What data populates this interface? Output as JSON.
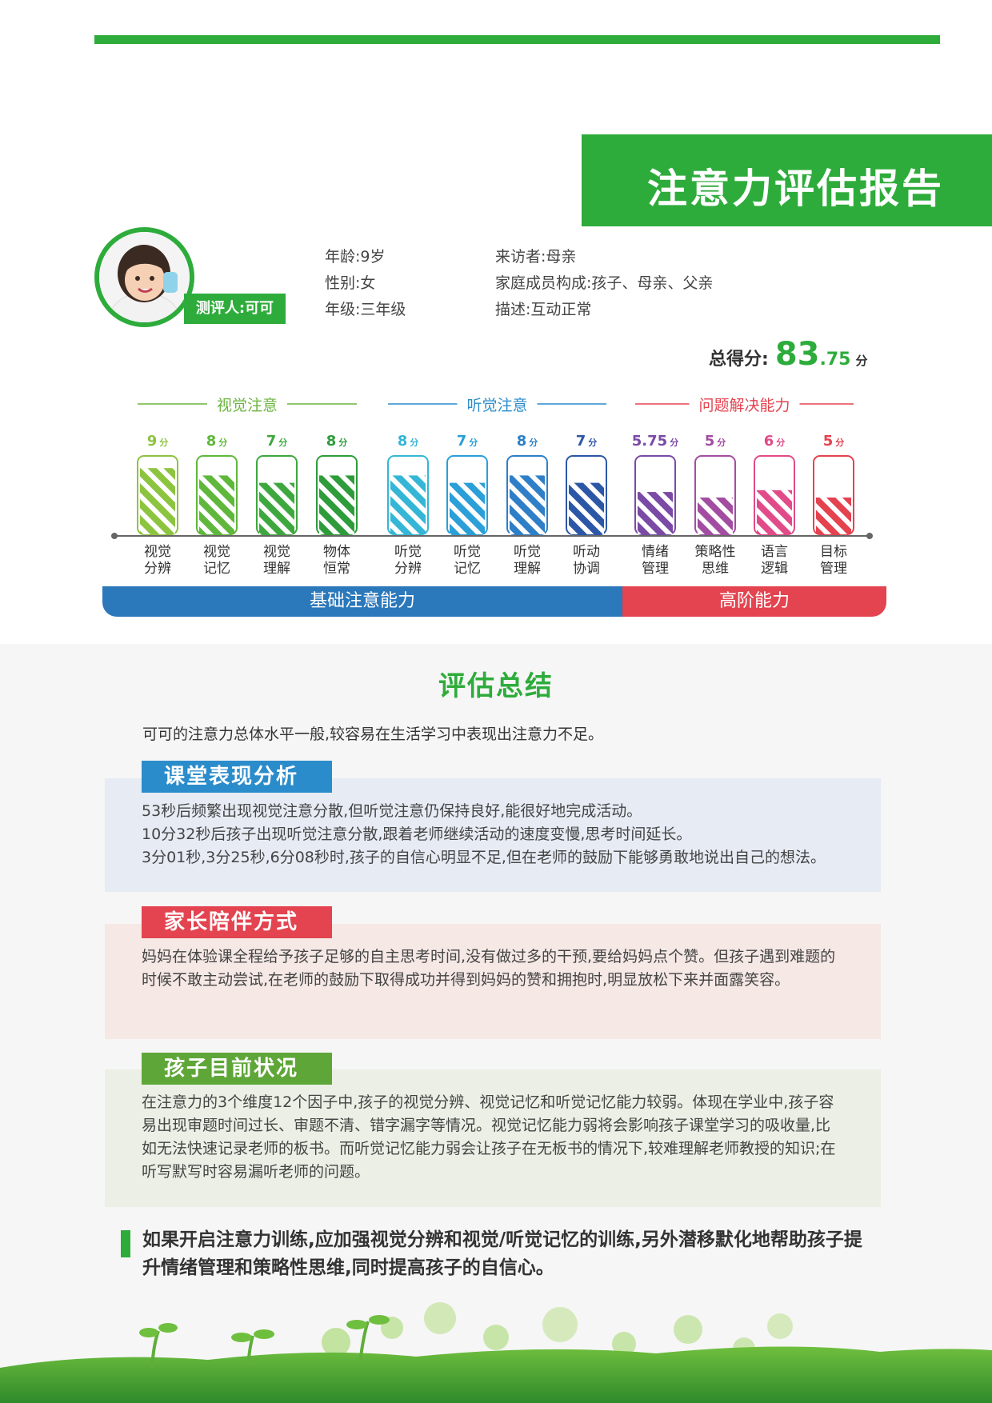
{
  "header": {
    "title": "注意力评估报告"
  },
  "profile": {
    "name_tag": "测评人:可可",
    "age": "年龄:9岁",
    "gender": "性别:女",
    "grade": "年级:三年级",
    "visitor": "来访者:母亲",
    "family": "家庭成员构成:孩子、母亲、父亲",
    "desc": "描述:互动正常"
  },
  "total": {
    "label": "总得分:",
    "integer": "83",
    "decimal": ".75",
    "unit": "分"
  },
  "chart_data": {
    "type": "bar",
    "ylim": [
      0,
      10
    ],
    "unit": "分",
    "groups": [
      {
        "name": "视觉注意",
        "color": "#6cb43f",
        "indices": [
          0,
          1,
          2,
          3
        ]
      },
      {
        "name": "听觉注意",
        "color": "#2b8ccb",
        "indices": [
          4,
          5,
          6,
          7
        ]
      },
      {
        "name": "问题解决能力",
        "color": "#e34450",
        "indices": [
          8,
          9,
          10,
          11
        ]
      }
    ],
    "categories": [
      "视觉\n分辨",
      "视觉\n记忆",
      "视觉\n理解",
      "物体\n恒常",
      "听觉\n分辨",
      "听觉\n记忆",
      "听觉\n理解",
      "听动\n协调",
      "情绪\n管理",
      "策略性\n思维",
      "语言\n逻辑",
      "目标\n管理"
    ],
    "values": [
      9,
      8,
      7,
      8,
      8,
      7,
      8,
      7,
      5.75,
      5,
      6,
      5
    ],
    "value_labels": [
      "9",
      "8",
      "7",
      "8",
      "8",
      "7",
      "8",
      "7",
      "5.75",
      "5",
      "6",
      "5"
    ],
    "colors": [
      "#8dc43f",
      "#5fb83c",
      "#3ea83e",
      "#2e9c3a",
      "#35b6d6",
      "#2a9fd8",
      "#2e7fc7",
      "#2c57a7",
      "#7b4aa6",
      "#a24da1",
      "#e14b89",
      "#e5424f"
    ]
  },
  "bands": {
    "basic": "基础注意能力",
    "advanced": "高阶能力"
  },
  "summary": {
    "title": "评估总结",
    "text": "可可的注意力总体水平一般,较容易在生活学习中表现出注意力不足。"
  },
  "sections": [
    {
      "tag": "课堂表现分析",
      "lines": [
        "53秒后频繁出现视觉注意分散,但听觉注意仍保持良好,能很好地完成活动。",
        "10分32秒后孩子出现听觉注意分散,跟着老师继续活动的速度变慢,思考时间延长。",
        "3分01秒,3分25秒,6分08秒时,孩子的自信心明显不足,但在老师的鼓励下能够勇敢地说出自己的想法。"
      ]
    },
    {
      "tag": "家长陪伴方式",
      "lines": [
        "妈妈在体验课全程给予孩子足够的自主思考时间,没有做过多的干预,要给妈妈点个赞。但孩子遇到难题的时候不敢主动尝试,在老师的鼓励下取得成功并得到妈妈的赞和拥抱时,明显放松下来并面露笑容。"
      ]
    },
    {
      "tag": "孩子目前状况",
      "lines": [
        "在注意力的3个维度12个因子中,孩子的视觉分辨、视觉记忆和听觉记忆能力较弱。体现在学业中,孩子容易出现审题时间过长、审题不清、错字漏字等情况。视觉记忆能力弱将会影响孩子课堂学习的吸收量,比如无法快速记录老师的板书。而听觉记忆能力弱会让孩子在无板书的情况下,较难理解老师教授的知识;在听写默写时容易漏听老师的问题。"
      ]
    }
  ],
  "recommendation": "如果开启注意力训练,应加强视觉分辨和视觉/听觉记忆的训练,另外潜移默化地帮助孩子提升情绪管理和策略性思维,同时提高孩子的自信心。"
}
